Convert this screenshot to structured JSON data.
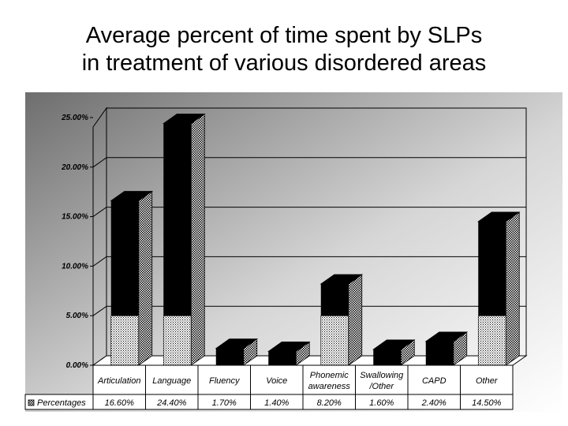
{
  "title_lines": [
    "Average percent of time spent by SLPs",
    "in treatment of various disordered areas"
  ],
  "chart_data": {
    "type": "bar",
    "title": "Average percent of time spent by SLPs in treatment of various disordered areas",
    "categories": [
      [
        "Articulation"
      ],
      [
        "Language"
      ],
      [
        "Fluency"
      ],
      [
        "Voice"
      ],
      [
        "Phonemic",
        "awareness"
      ],
      [
        "Swallowing",
        "/Other"
      ],
      [
        "CAPD"
      ],
      [
        "Other"
      ]
    ],
    "series": [
      {
        "name": "Percentages",
        "values": [
          16.6,
          24.4,
          1.7,
          1.4,
          8.2,
          1.6,
          2.4,
          14.5
        ],
        "labels": [
          "16.60%",
          "24.40%",
          "1.70%",
          "1.40%",
          "8.20%",
          "1.60%",
          "2.40%",
          "14.50%"
        ]
      }
    ],
    "ylim": [
      0,
      25
    ],
    "yticks": [
      "0.00%",
      "5.00%",
      "10.00%",
      "15.00%",
      "20.00%",
      "25.00%"
    ],
    "grid": true,
    "legend": "data-table",
    "colors": {
      "bar_dark": "#000000",
      "bar_pattern": "#ffffff"
    }
  }
}
